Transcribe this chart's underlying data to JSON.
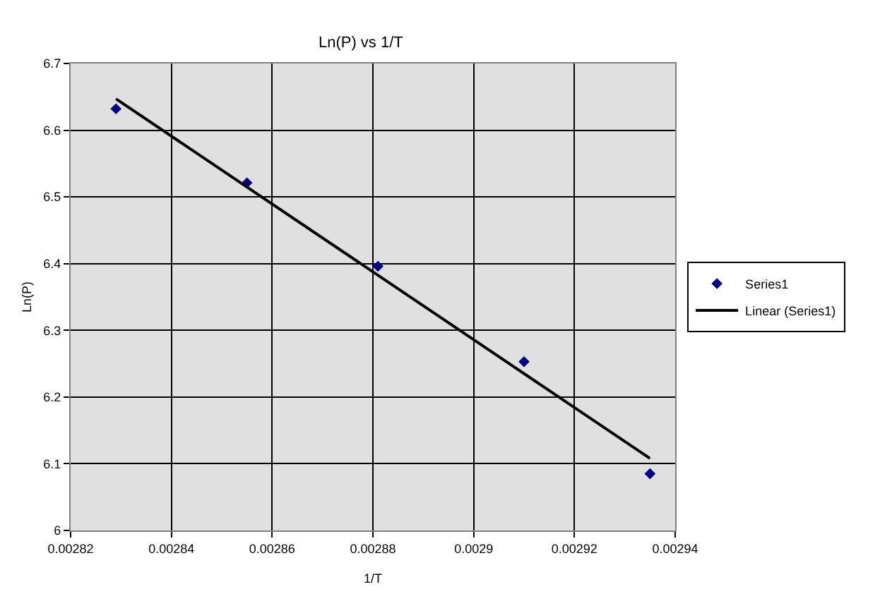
{
  "chart_data": {
    "type": "scatter",
    "title": "Ln(P) vs 1/T",
    "xlabel": "1/T",
    "ylabel": "Ln(P)",
    "xlim": [
      0.00282,
      0.00294
    ],
    "xticks": [
      0.00282,
      0.00284,
      0.00286,
      0.00288,
      0.0029,
      0.00292,
      0.00294
    ],
    "ylim": [
      6,
      6.7
    ],
    "yticks": [
      6,
      6.1,
      6.2,
      6.3,
      6.4,
      6.5,
      6.6,
      6.7
    ],
    "series": [
      {
        "name": "Series1",
        "color": "#000080",
        "marker": "diamond",
        "x": [
          0.002829,
          0.002855,
          0.002881,
          0.00291,
          0.002935
        ],
        "values": [
          6.632,
          6.521,
          6.396,
          6.253,
          6.085
        ]
      },
      {
        "name": "Linear (Series1)",
        "type": "line",
        "color": "#000000",
        "marker": "none",
        "line_style": "solid",
        "x": [
          0.002829,
          0.002935
        ],
        "values": [
          6.647,
          6.108
        ]
      }
    ],
    "grid": true,
    "legend": "right"
  }
}
